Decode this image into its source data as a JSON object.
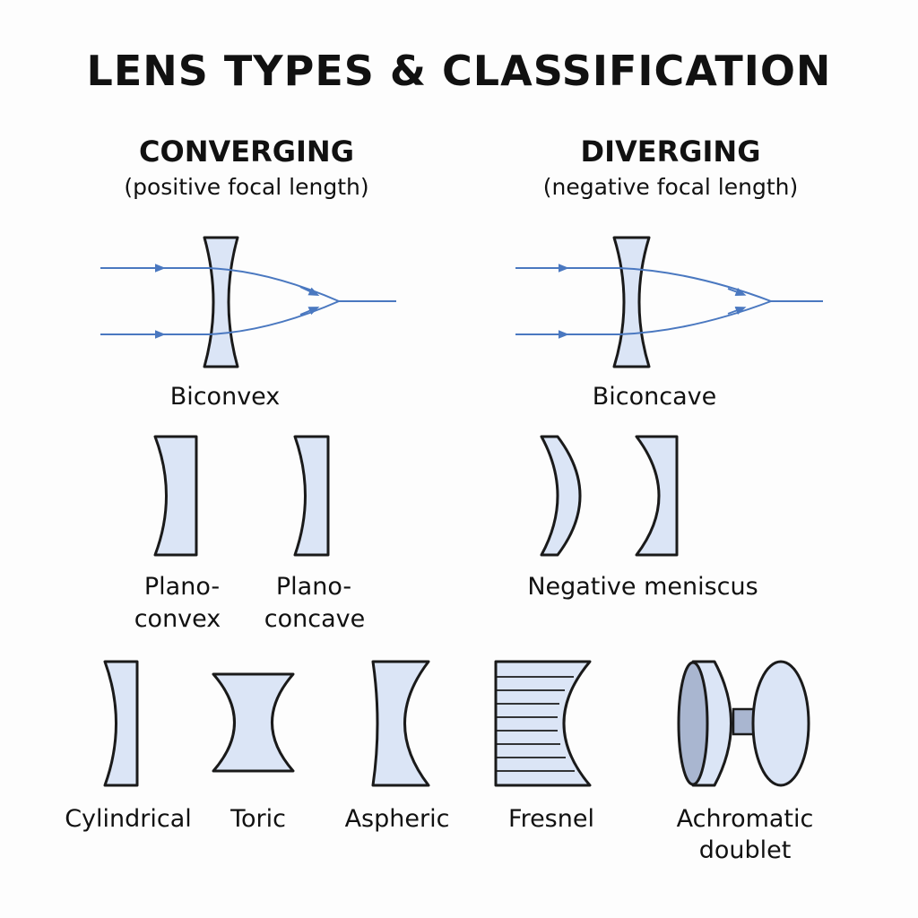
{
  "title": "LENS TYPES & CLASSIFICATION",
  "converging": {
    "heading": "CONVERGING",
    "subheading": "(positive focal length)",
    "lens_name": "Biconvex"
  },
  "diverging": {
    "heading": "DIVERGING",
    "subheading": "(negative focal length)",
    "lens_name": "Biconcave"
  },
  "row2": {
    "plano_convex": {
      "line1": "Plano-",
      "line2": "convex"
    },
    "plano_concave": {
      "line1": "Plano-",
      "line2": "concave"
    },
    "negative_meniscus": "Negative meniscus"
  },
  "row3": {
    "cylindrical": "Cylindrical",
    "toric": "Toric",
    "aspheric": "Aspheric",
    "fresnel": "Fresnel",
    "achromatic": {
      "line1": "Achromatic",
      "line2": "doublet"
    }
  },
  "colors": {
    "lens_fill": "#dbe5f6",
    "lens_stroke": "#1a1a1a",
    "ray": "#4a78c0",
    "doublet_dark_fill": "#a9b6d0"
  }
}
